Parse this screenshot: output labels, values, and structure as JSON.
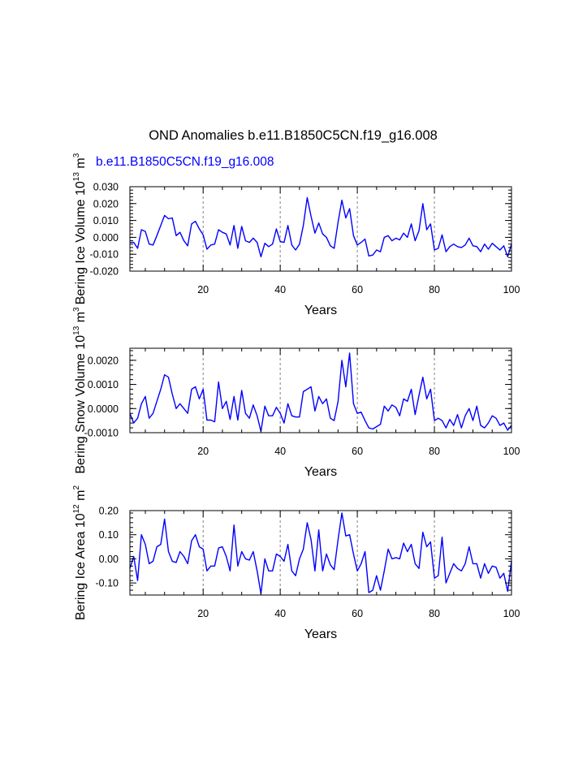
{
  "title": "OND Anomalies b.e11.B1850C5CN.f19_g16.008",
  "subtitle": "b.e11.B1850C5CN.f19_g16.008",
  "colors": {
    "line": "#0000ff",
    "axis": "#000000",
    "grid": "#808080",
    "subtitle": "#0000ff"
  },
  "chart_data": [
    {
      "type": "line",
      "ylabel": {
        "text": "Bering Ice Volume 10",
        "exp": "13",
        "unit": " m",
        "unit_exp": "3"
      },
      "xlabel": "Years",
      "xlim": [
        1,
        100
      ],
      "ylim": [
        -0.02,
        0.03
      ],
      "xticks": [
        20,
        40,
        60,
        80,
        100
      ],
      "xtick_labels": [
        "20",
        "40",
        "60",
        "80",
        "100"
      ],
      "yticks": [
        -0.02,
        -0.01,
        0.0,
        0.01,
        0.02,
        0.03
      ],
      "ytick_labels": [
        "-0.020",
        "-0.010",
        "0.000",
        "0.010",
        "0.020",
        "0.030"
      ],
      "vgrid": [
        20,
        40,
        60,
        80
      ],
      "series": [
        {
          "name": "b.e11.B1850C5CN.f19_g16.008",
          "values": [
            -0.003,
            -0.003,
            -0.0065,
            0.0045,
            0.0035,
            -0.004,
            -0.0045,
            0.001,
            0.007,
            0.013,
            0.011,
            0.0115,
            0.001,
            0.003,
            -0.002,
            -0.005,
            0.008,
            0.0095,
            0.005,
            0.0015,
            -0.007,
            -0.0045,
            -0.004,
            0.0045,
            0.003,
            0.002,
            -0.0045,
            0.007,
            -0.0065,
            0.0065,
            -0.002,
            -0.003,
            -0.0005,
            -0.003,
            -0.0115,
            -0.0035,
            -0.0055,
            -0.004,
            0.005,
            -0.0025,
            -0.003,
            0.007,
            -0.0045,
            -0.0075,
            -0.004,
            0.007,
            0.0235,
            0.0125,
            0.0025,
            0.0085,
            0.002,
            0.0,
            -0.005,
            -0.0065,
            0.009,
            0.022,
            0.0115,
            0.017,
            0.001,
            -0.0045,
            -0.003,
            -0.001,
            -0.011,
            -0.0105,
            -0.0075,
            -0.0085,
            0.0,
            0.001,
            -0.002,
            -0.0005,
            -0.0015,
            0.0025,
            0.0,
            0.008,
            -0.002,
            0.004,
            0.02,
            0.0045,
            0.008,
            -0.0075,
            -0.0065,
            0.0015,
            -0.0085,
            -0.0055,
            -0.004,
            -0.0055,
            -0.006,
            -0.0045,
            -0.0005,
            -0.005,
            -0.0055,
            -0.0085,
            -0.004,
            -0.007,
            -0.0035,
            -0.0055,
            -0.0075,
            -0.005,
            -0.0115,
            -0.004
          ]
        }
      ]
    },
    {
      "type": "line",
      "ylabel": {
        "text": "Bering Snow Volume 10",
        "exp": "13",
        "unit": " m",
        "unit_exp": "3"
      },
      "xlabel": "Years",
      "xlim": [
        1,
        100
      ],
      "ylim": [
        -0.001,
        0.0025
      ],
      "xticks": [
        20,
        40,
        60,
        80,
        100
      ],
      "xtick_labels": [
        "20",
        "40",
        "60",
        "80",
        "100"
      ],
      "yticks": [
        -0.001,
        0.0,
        0.001,
        0.002
      ],
      "ytick_labels": [
        "-0.0010",
        "0.0000",
        "0.0010",
        "0.0020"
      ],
      "vgrid": [
        20,
        40,
        60,
        80
      ],
      "series": [
        {
          "name": "b.e11.B1850C5CN.f19_g16.008",
          "values": [
            -0.0002,
            -0.0006,
            -0.0004,
            0.0002,
            0.0005,
            -0.0004,
            -0.0002,
            0.0003,
            0.0008,
            0.0014,
            0.0013,
            0.0006,
            0.0,
            0.0002,
            0.0,
            -0.0002,
            0.0008,
            0.0009,
            0.0004,
            0.0008,
            -0.00048,
            -0.00048,
            -0.00055,
            0.0011,
            0.0,
            0.0003,
            -0.00045,
            0.0005,
            -0.00048,
            0.00075,
            -0.0002,
            -0.0004,
            0.00015,
            -0.0003,
            -0.00095,
            0.0001,
            -0.0003,
            -0.0003,
            5e-05,
            -0.0002,
            -0.0006,
            0.0002,
            -0.0003,
            -0.00035,
            -0.00035,
            0.0007,
            0.0008,
            0.0009,
            -0.0001,
            0.0005,
            0.0002,
            0.0004,
            -0.0004,
            -0.0005,
            0.0003,
            0.002,
            0.0009,
            0.0023,
            0.0002,
            -0.0002,
            -0.00015,
            -0.0005,
            -0.0008,
            -0.00085,
            -0.00075,
            -0.00065,
            0.0001,
            -0.0001,
            0.00015,
            5e-05,
            -0.0003,
            0.0004,
            0.0003,
            0.0008,
            -0.00025,
            0.00055,
            0.0013,
            0.0004,
            0.0008,
            -0.0005,
            -0.0004,
            -0.0005,
            -0.0008,
            -0.00045,
            -0.0007,
            -0.00025,
            -0.0008,
            -0.0003,
            0.0,
            -0.0005,
            0.0001,
            -0.0007,
            -0.0008,
            -0.0006,
            -0.0003,
            -0.0004,
            -0.0007,
            -0.0006,
            -0.0009,
            -0.0007
          ]
        }
      ]
    },
    {
      "type": "line",
      "ylabel": {
        "text": "Bering Ice Area 10",
        "exp": "12",
        "unit": " m",
        "unit_exp": "2"
      },
      "xlabel": "Years",
      "xlim": [
        1,
        100
      ],
      "ylim": [
        -0.15,
        0.2
      ],
      "xticks": [
        20,
        40,
        60,
        80,
        100
      ],
      "xtick_labels": [
        "20",
        "40",
        "60",
        "80",
        "100"
      ],
      "yticks": [
        -0.1,
        0.0,
        0.1,
        0.2
      ],
      "ytick_labels": [
        "-0.10",
        "0.00",
        "0.10",
        "0.20"
      ],
      "vgrid": [
        20,
        40,
        60,
        80
      ],
      "series": [
        {
          "name": "b.e11.B1850C5CN.f19_g16.008",
          "values": [
            -0.04,
            0.01,
            -0.09,
            0.1,
            0.06,
            -0.02,
            -0.01,
            0.05,
            0.06,
            0.165,
            0.03,
            -0.01,
            -0.015,
            0.03,
            0.01,
            -0.02,
            0.075,
            0.1,
            0.05,
            0.04,
            -0.05,
            -0.03,
            -0.03,
            0.045,
            0.05,
            0.01,
            -0.05,
            0.14,
            -0.03,
            0.03,
            0.0,
            -0.005,
            0.03,
            -0.05,
            -0.145,
            0.0,
            -0.05,
            -0.05,
            0.02,
            0.01,
            -0.01,
            0.06,
            -0.05,
            -0.07,
            0.0,
            0.04,
            0.15,
            0.08,
            -0.05,
            0.12,
            -0.05,
            0.02,
            -0.025,
            -0.045,
            0.08,
            0.19,
            0.095,
            0.1,
            0.02,
            -0.05,
            -0.02,
            0.03,
            -0.14,
            -0.13,
            -0.07,
            -0.13,
            -0.05,
            0.04,
            0.0,
            0.005,
            0.0,
            0.065,
            0.03,
            0.06,
            -0.02,
            -0.04,
            0.11,
            0.05,
            0.07,
            -0.08,
            -0.07,
            0.09,
            -0.1,
            -0.06,
            -0.02,
            -0.04,
            -0.05,
            -0.02,
            0.05,
            -0.02,
            -0.02,
            -0.08,
            -0.02,
            -0.06,
            -0.03,
            -0.035,
            -0.08,
            -0.06,
            -0.135,
            -0.01
          ]
        }
      ]
    }
  ]
}
